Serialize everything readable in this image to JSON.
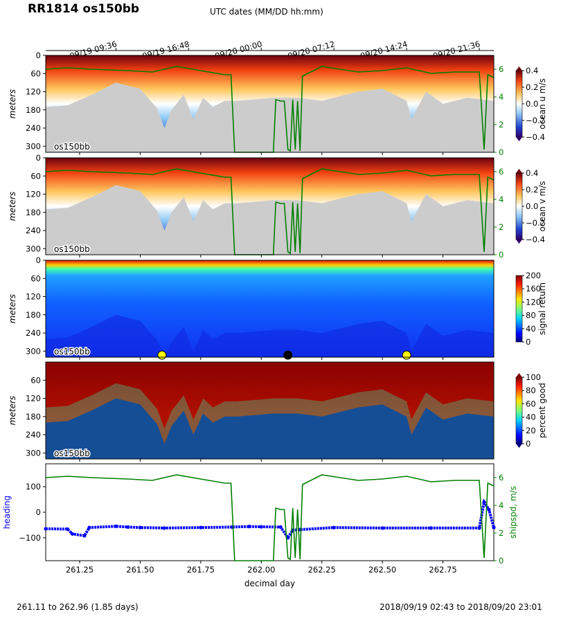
{
  "title": "RR1814 os150bb",
  "top_axis_label": "UTC dates (MM/DD hh:mm)",
  "top_ticks": [
    {
      "day": 261.4,
      "label": "09/19 09:36"
    },
    {
      "day": 261.7,
      "label": "09/19 16:48"
    },
    {
      "day": 262.0,
      "label": "09/20 00:00"
    },
    {
      "day": 262.3,
      "label": "09/20 07:12"
    },
    {
      "day": 262.6,
      "label": "09/20 14:24"
    },
    {
      "day": 262.9,
      "label": "09/20 21:36"
    }
  ],
  "footer_left": "261.11 to 262.96 (1.85 days)",
  "footer_right": "2018/09/19 02:43 to 2018/09/20 23:01",
  "colors": {
    "ship_speed": "#008000",
    "heading": "#0000ff",
    "bottom_mask": "#cccccc"
  },
  "chart_data": [
    {
      "type": "heatmap",
      "ylabel": "meters",
      "panel_label": "os150bb",
      "xlim": [
        261.11,
        262.96
      ],
      "ylim": [
        320,
        0
      ],
      "yticks": [
        0,
        60,
        120,
        180,
        240,
        300
      ],
      "colorbar": {
        "label": "ocean u m/s",
        "range": [
          -0.4,
          0.4
        ],
        "ticks": [
          "0.4",
          "0.2",
          "0.0",
          "−0.2",
          "−0.4"
        ]
      },
      "right_axis": {
        "ticks": [
          "6",
          "4",
          "2",
          "0"
        ],
        "range": [
          0,
          7
        ]
      }
    },
    {
      "type": "heatmap",
      "ylabel": "meters",
      "panel_label": "os150bb",
      "xlim": [
        261.11,
        262.96
      ],
      "ylim": [
        320,
        0
      ],
      "yticks": [
        0,
        60,
        120,
        180,
        240,
        300
      ],
      "colorbar": {
        "label": "ocean v m/s",
        "range": [
          -0.4,
          0.4
        ],
        "ticks": [
          "0.4",
          "0.2",
          "0.0",
          "−0.2",
          "−0.4"
        ]
      },
      "right_axis": {
        "ticks": [
          "6",
          "4",
          "2",
          "0"
        ],
        "range": [
          0,
          7
        ]
      }
    },
    {
      "type": "heatmap",
      "ylabel": "meters",
      "panel_label": "os150bb",
      "xlim": [
        261.11,
        262.96
      ],
      "ylim": [
        320,
        0
      ],
      "yticks": [
        0,
        60,
        120,
        180,
        240,
        300
      ],
      "colorbar": {
        "label": "signal return",
        "range": [
          0,
          200
        ],
        "ticks": [
          "200",
          "160",
          "120",
          "80",
          "40",
          "0"
        ]
      },
      "markers": [
        {
          "day": 261.59,
          "color": "#ffff00"
        },
        {
          "day": 262.11,
          "color": "#000000"
        },
        {
          "day": 262.6,
          "color": "#ffff00"
        }
      ]
    },
    {
      "type": "heatmap",
      "ylabel": "meters",
      "panel_label": "os150bb",
      "xlim": [
        261.11,
        262.96
      ],
      "ylim": [
        320,
        0
      ],
      "yticks": [
        60,
        120,
        180,
        240,
        300
      ],
      "colorbar": {
        "label": "percent good",
        "range": [
          0,
          100
        ],
        "ticks": [
          "100",
          "80",
          "60",
          "40",
          "20",
          "0"
        ]
      }
    },
    {
      "type": "line",
      "xlabel": "decimal day",
      "xlim": [
        261.11,
        262.96
      ],
      "xticks": [
        "261.25",
        "261.50",
        "261.75",
        "262.00",
        "262.25",
        "262.50",
        "262.75"
      ],
      "xtick_values": [
        261.25,
        261.5,
        261.75,
        262.0,
        262.25,
        262.5,
        262.75
      ],
      "left_axis": {
        "label": "heading",
        "range": [
          -190,
          190
        ],
        "ticks": [
          "100",
          "0",
          "−100"
        ],
        "tick_values": [
          100,
          0,
          -100
        ]
      },
      "right_axis": {
        "label": "shipspd, m/s",
        "range": [
          0,
          7
        ],
        "ticks": [
          "6",
          "4",
          "2",
          "0"
        ],
        "tick_values": [
          6,
          4,
          2,
          0
        ]
      },
      "series": [
        {
          "name": "heading",
          "x": [
            261.11,
            261.2,
            261.22,
            261.27,
            261.29,
            261.4,
            261.45,
            261.5,
            261.6,
            261.75,
            261.88,
            261.95,
            262.0,
            262.08,
            262.11,
            262.13,
            262.16,
            262.3,
            262.5,
            262.7,
            262.9,
            262.92,
            262.94,
            262.96
          ],
          "y": [
            -65,
            -66,
            -85,
            -92,
            -60,
            -55,
            -58,
            -60,
            -62,
            -60,
            -58,
            -56,
            -57,
            -58,
            -100,
            -70,
            -68,
            -60,
            -62,
            -62,
            -62,
            40,
            10,
            -60
          ]
        },
        {
          "name": "ship speed",
          "x": [
            261.11,
            261.2,
            261.3,
            261.45,
            261.55,
            261.65,
            261.75,
            261.85,
            261.875,
            261.89,
            261.95,
            262.05,
            262.06,
            262.08,
            262.095,
            262.11,
            262.12,
            262.13,
            262.14,
            262.15,
            262.16,
            262.17,
            262.25,
            262.4,
            262.5,
            262.6,
            262.7,
            262.8,
            262.9,
            262.92,
            262.935,
            262.96
          ],
          "y": [
            6.0,
            6.1,
            6.0,
            5.9,
            5.8,
            6.2,
            5.9,
            5.6,
            5.6,
            0.0,
            0.0,
            0.0,
            3.8,
            3.7,
            3.7,
            0.2,
            0.1,
            3.8,
            0.2,
            3.7,
            0.1,
            5.5,
            6.2,
            5.8,
            5.9,
            6.1,
            5.7,
            5.8,
            5.8,
            0.2,
            5.6,
            5.4
          ]
        }
      ]
    }
  ]
}
